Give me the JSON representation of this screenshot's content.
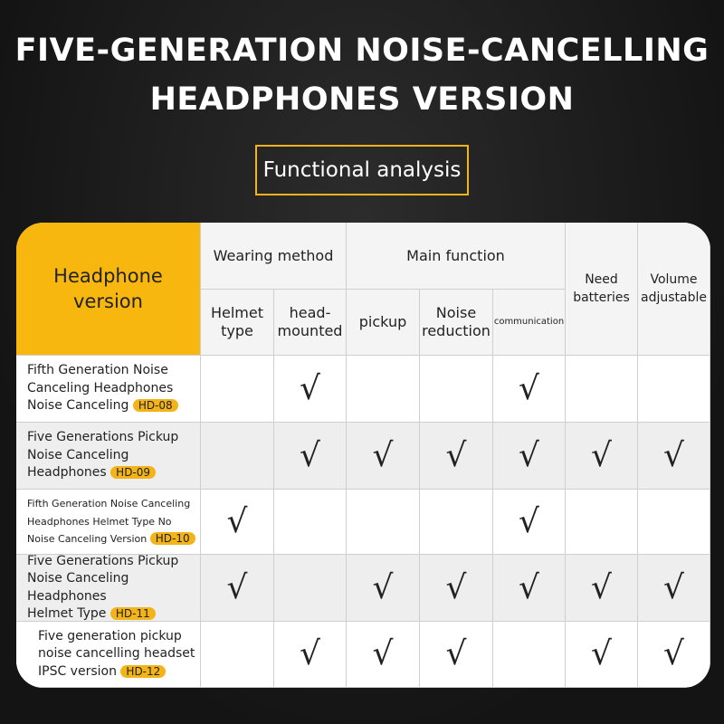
{
  "header": {
    "title_lines": [
      "FIVE-GENERATION NOISE-CANCELLING",
      "HEADPHONES VERSION"
    ],
    "subtitle": "Functional analysis"
  },
  "table": {
    "corner": "Headphone version",
    "groups": [
      "Wearing method",
      "Main function"
    ],
    "columns": [
      "Helmet type",
      "head-mounted",
      "pickup",
      "Noise reduction",
      "communication",
      "Need batteries",
      "Volume adjustable"
    ],
    "rows": [
      {
        "name_lines": [
          "Fifth Generation Noise",
          "Canceling Headphones",
          "Noise Canceling"
        ],
        "model": "HD-08",
        "cells": [
          null,
          "√",
          null,
          null,
          "√",
          null,
          null
        ]
      },
      {
        "name_lines": [
          "Five Generations Pickup",
          "Noise Canceling",
          "Headphones"
        ],
        "model": "HD-09",
        "cells": [
          null,
          "√",
          "√",
          "√",
          "√",
          "√",
          "√"
        ]
      },
      {
        "name_lines": [
          "Fifth Generation Noise Canceling",
          "Headphones Helmet Type No",
          "Noise Canceling Version"
        ],
        "model": "HD-10",
        "cells": [
          "√",
          null,
          null,
          null,
          "√",
          null,
          null
        ]
      },
      {
        "name_lines": [
          "Five Generations Pickup",
          "Noise Canceling Headphones",
          "Helmet Type"
        ],
        "model": "HD-11",
        "cells": [
          "√",
          null,
          "√",
          "√",
          "√",
          "√",
          "√"
        ]
      },
      {
        "name_lines": [
          "Five generation pickup",
          "noise cancelling headset",
          "IPSC version"
        ],
        "model": "HD-12",
        "cells": [
          null,
          "√",
          "√",
          "√",
          null,
          "√",
          "√"
        ]
      }
    ]
  }
}
